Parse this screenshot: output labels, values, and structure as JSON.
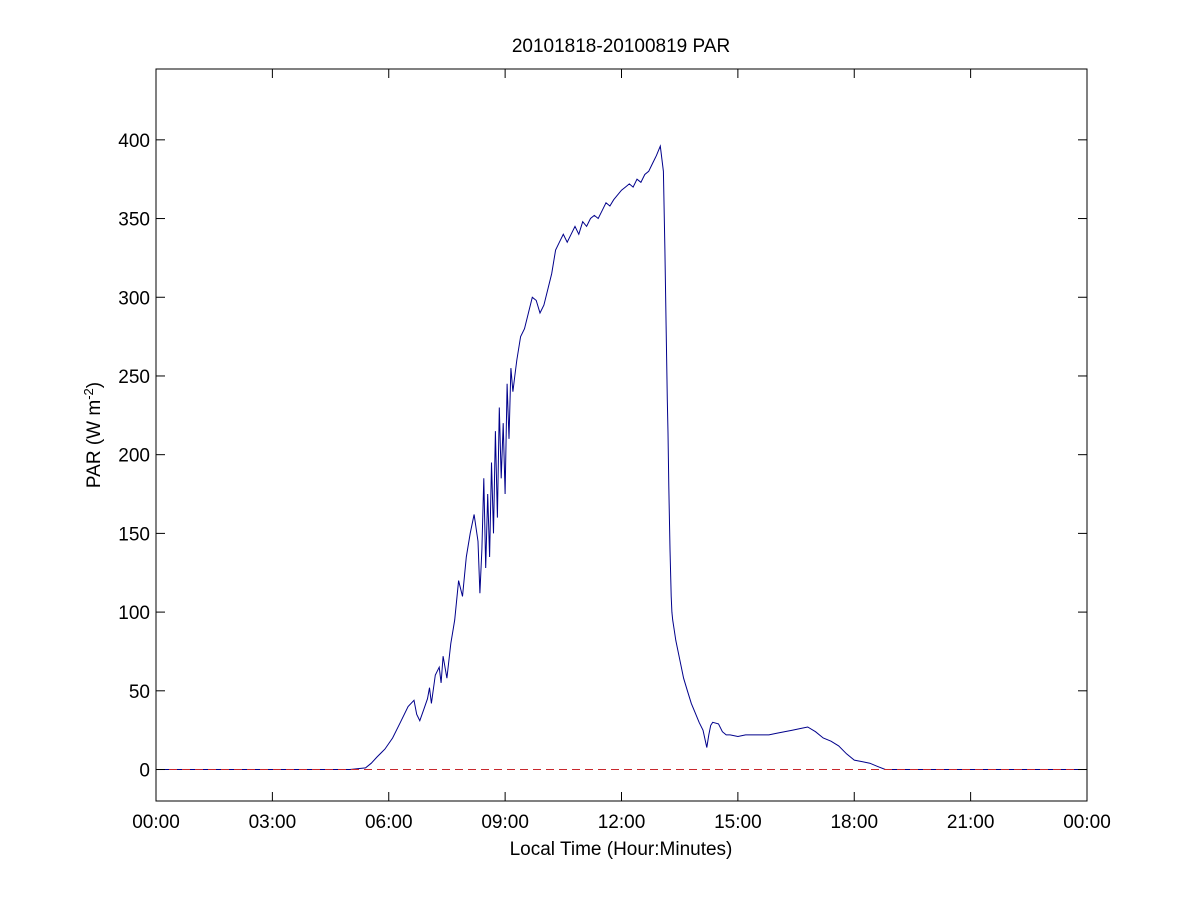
{
  "chart_data": {
    "type": "line",
    "title": "20101818-20100819 PAR",
    "xlabel": "Local Time (Hour:Minutes)",
    "ylabel_main": "PAR (W m",
    "ylabel_sup": "-2",
    "ylabel_end": ")",
    "xlim": [
      0,
      24
    ],
    "ylim": [
      -20,
      445
    ],
    "x_ticks": [
      0,
      3,
      6,
      9,
      12,
      15,
      18,
      21,
      24
    ],
    "x_tick_labels": [
      "00:00",
      "03:00",
      "06:00",
      "09:00",
      "12:00",
      "15:00",
      "18:00",
      "21:00",
      "00:00"
    ],
    "y_ticks": [
      0,
      50,
      100,
      150,
      200,
      250,
      300,
      350,
      400
    ],
    "y_tick_labels": [
      "0",
      "50",
      "100",
      "150",
      "200",
      "250",
      "300",
      "350",
      "400"
    ],
    "grid": false,
    "series": [
      {
        "color": "#00008b",
        "style": "solid",
        "x": [
          0,
          5.0,
          5.4,
          5.55,
          5.7,
          5.9,
          6.1,
          6.3,
          6.5,
          6.65,
          6.72,
          6.8,
          6.9,
          7.0,
          7.05,
          7.1,
          7.2,
          7.3,
          7.35,
          7.4,
          7.5,
          7.6,
          7.7,
          7.8,
          7.9,
          8.0,
          8.1,
          8.2,
          8.3,
          8.35,
          8.4,
          8.45,
          8.5,
          8.55,
          8.6,
          8.65,
          8.7,
          8.75,
          8.8,
          8.85,
          8.9,
          8.95,
          9.0,
          9.05,
          9.1,
          9.15,
          9.2,
          9.25,
          9.3,
          9.4,
          9.5,
          9.6,
          9.7,
          9.8,
          9.9,
          10.0,
          10.1,
          10.2,
          10.3,
          10.4,
          10.5,
          10.6,
          10.7,
          10.8,
          10.9,
          11.0,
          11.1,
          11.2,
          11.3,
          11.4,
          11.5,
          11.6,
          11.7,
          11.8,
          11.9,
          12.0,
          12.1,
          12.2,
          12.3,
          12.4,
          12.5,
          12.6,
          12.7,
          12.8,
          12.9,
          13.0,
          13.08,
          13.12,
          13.15,
          13.18,
          13.2,
          13.22,
          13.25,
          13.28,
          13.3,
          13.32,
          13.35,
          13.4,
          13.5,
          13.6,
          13.7,
          13.8,
          13.9,
          14.0,
          14.1,
          14.2,
          14.25,
          14.3,
          14.35,
          14.5,
          14.6,
          14.7,
          14.8,
          15.0,
          15.2,
          15.4,
          15.6,
          15.8,
          16.0,
          16.2,
          16.4,
          16.6,
          16.8,
          17.0,
          17.2,
          17.4,
          17.6,
          17.8,
          18.0,
          18.2,
          18.4,
          18.6,
          18.8,
          19.0,
          24
        ],
        "y": [
          0,
          0,
          1,
          4,
          8,
          13,
          20,
          30,
          40,
          44,
          35,
          31,
          38,
          45,
          52,
          42,
          60,
          65,
          55,
          72,
          58,
          80,
          95,
          120,
          110,
          135,
          150,
          162,
          145,
          112,
          140,
          185,
          128,
          175,
          135,
          195,
          150,
          215,
          160,
          230,
          185,
          220,
          175,
          245,
          210,
          255,
          240,
          250,
          260,
          275,
          280,
          290,
          300,
          298,
          290,
          295,
          305,
          315,
          330,
          335,
          340,
          335,
          340,
          345,
          340,
          348,
          345,
          350,
          352,
          350,
          355,
          360,
          358,
          362,
          365,
          368,
          370,
          372,
          370,
          375,
          373,
          378,
          380,
          385,
          390,
          396,
          380,
          330,
          282,
          235,
          214,
          180,
          140,
          110,
          100,
          95,
          90,
          82,
          70,
          58,
          50,
          42,
          36,
          30,
          25,
          14,
          22,
          28,
          30,
          29,
          24,
          22,
          22,
          21,
          22,
          22,
          22,
          22,
          23,
          24,
          25,
          26,
          27,
          24,
          20,
          18,
          15,
          10,
          6,
          5,
          4,
          2,
          0,
          0,
          0
        ]
      },
      {
        "color": "#c8282d",
        "style": "dashed",
        "x": [
          0,
          24
        ],
        "y": [
          0,
          0
        ]
      }
    ]
  }
}
